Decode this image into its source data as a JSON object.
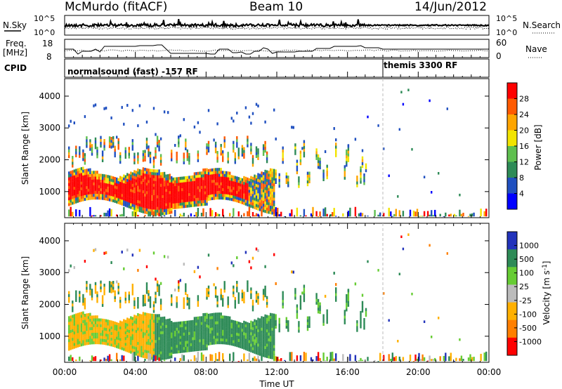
{
  "header": {
    "station": "McMurdo (fitACF)",
    "beam": "Beam 10",
    "date": "14/Jun/2012"
  },
  "top_panel": {
    "left_label": "N.Sky",
    "right_label": "N.Search",
    "left_ticks": [
      "10^5",
      "10^0"
    ],
    "right_ticks": [
      "10^5",
      "10^0"
    ]
  },
  "freq_panel": {
    "left_label_1": "Freq.",
    "left_label_2": "[MHz]",
    "right_label": "Nave",
    "left_ticks": [
      "18",
      "8"
    ],
    "right_ticks": [
      "60",
      "0"
    ]
  },
  "cpid": {
    "label": "CPID",
    "mode1": "normalsound (fast) -157 RF",
    "mode2": "themis 3300 RF",
    "switch_hour": 18.0
  },
  "colors": {
    "power_scale": [
      "#0000ff",
      "#2050c0",
      "#2e8b57",
      "#5fbf4f",
      "#f2e400",
      "#ffa500",
      "#ff5a00",
      "#ff0000"
    ],
    "velocity_scale": [
      "#2233bb",
      "#2e8b57",
      "#66cc33",
      "#bbbbbb",
      "#ffb000",
      "#ff7f00",
      "#ff0000"
    ]
  },
  "chart_data": [
    {
      "type": "heatmap",
      "name": "power",
      "ylabel": "Slant Range [km]",
      "ylim": [
        180,
        4550
      ],
      "yticks": [
        "1000",
        "2000",
        "3000",
        "4000"
      ],
      "xlim": [
        0,
        24
      ],
      "colorbar": {
        "label": "Power [dB]",
        "ticks": [
          "28",
          "24",
          "20",
          "16",
          "12",
          "8",
          "4"
        ],
        "range": [
          0,
          32
        ]
      }
    },
    {
      "type": "heatmap",
      "name": "velocity",
      "ylabel": "Slant Range [km]",
      "ylim": [
        180,
        4550
      ],
      "yticks": [
        "1000",
        "2000",
        "3000",
        "4000"
      ],
      "xlim": [
        0,
        24
      ],
      "xlabel": "Time UT",
      "xticks": [
        "00:00",
        "04:00",
        "08:00",
        "12:00",
        "16:00",
        "20:00",
        "00:00"
      ],
      "colorbar": {
        "label": "Velocity [m s",
        "label_sup": "-1",
        "label_end": "]",
        "ticks": [
          "1000",
          "500",
          "100",
          "25",
          "-25",
          "-100",
          "-500",
          "-1000"
        ]
      }
    }
  ]
}
